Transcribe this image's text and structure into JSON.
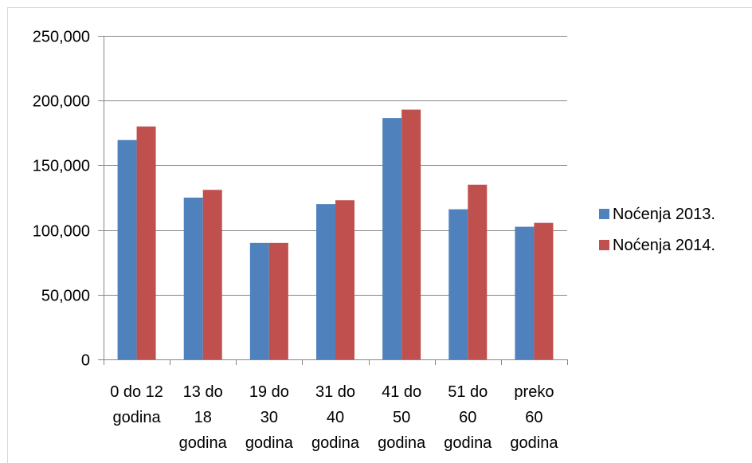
{
  "chart_data": {
    "type": "bar",
    "title": "",
    "xlabel": "",
    "ylabel": "",
    "ylim": [
      0,
      250000
    ],
    "yticks": [
      0,
      50000,
      100000,
      150000,
      200000,
      250000
    ],
    "ytick_labels": [
      "0",
      "50,000",
      "100,000",
      "150,000",
      "200,000",
      "250,000"
    ],
    "grid": true,
    "legend_position": "right",
    "categories": [
      [
        "0 do 12",
        "godina"
      ],
      [
        "13 do",
        "18",
        "godina"
      ],
      [
        "19 do",
        "30",
        "godina"
      ],
      [
        "31 do",
        "40",
        "godina"
      ],
      [
        "41 do",
        "50",
        "godina"
      ],
      [
        "51 do",
        "60",
        "godina"
      ],
      [
        "preko",
        "60",
        "godina"
      ]
    ],
    "series": [
      {
        "name": "Noćenja 2013.",
        "color": "#4f81bd",
        "values": [
          169500,
          125000,
          90000,
          120000,
          186500,
          116000,
          102500
        ]
      },
      {
        "name": "Noćenja 2014.",
        "color": "#c0504d",
        "values": [
          180000,
          131000,
          90000,
          123000,
          193000,
          135000,
          105500
        ]
      }
    ]
  }
}
